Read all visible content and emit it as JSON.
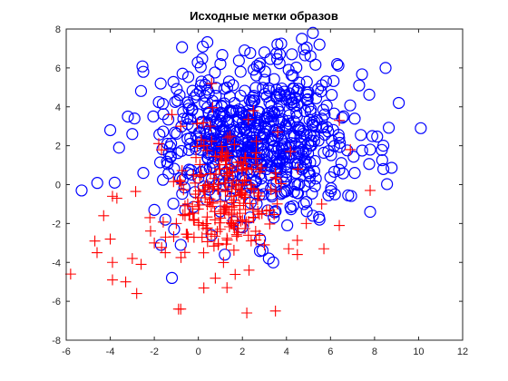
{
  "colors": {
    "class_circle": "#0000ff",
    "class_plus": "#ff0000",
    "axis": "#262626",
    "background": "#ffffff"
  },
  "chart_data": {
    "type": "scatter",
    "title": "Исходные метки образов",
    "xlabel": "",
    "ylabel": "",
    "xlim": [
      -6,
      12
    ],
    "ylim": [
      -8,
      8
    ],
    "xticks": [
      -6,
      -4,
      -2,
      0,
      2,
      4,
      6,
      8,
      10,
      12
    ],
    "yticks": [
      -8,
      -6,
      -4,
      -2,
      0,
      2,
      4,
      6,
      8
    ],
    "x_tick_labels": [
      "-6",
      "-4",
      "-2",
      "0",
      "2",
      "4",
      "6",
      "8",
      "10",
      "12"
    ],
    "y_tick_labels": [
      "-8",
      "-6",
      "-4",
      "-2",
      "0",
      "2",
      "4",
      "6",
      "8"
    ],
    "grid": false,
    "box": true,
    "series": [
      {
        "marker": "circle",
        "color": "#0000ff",
        "generated": {
          "count": 650,
          "center": [
            2.6,
            2.6
          ],
          "spread": [
            2.0,
            1.9
          ],
          "seed": 7
        },
        "points": [
          [
            5.2,
            7.8
          ],
          [
            4.7,
            7.5
          ],
          [
            5.5,
            7.2
          ],
          [
            0.2,
            7.1
          ],
          [
            2.1,
            6.9
          ],
          [
            3.0,
            6.8
          ],
          [
            3.7,
            6.7
          ],
          [
            6.3,
            6.2
          ],
          [
            8.5,
            6.0
          ],
          [
            1.0,
            6.2
          ],
          [
            -2.5,
            5.8
          ],
          [
            4.1,
            5.9
          ],
          [
            5.8,
            5.3
          ],
          [
            7.3,
            5.1
          ],
          [
            9.1,
            4.2
          ],
          [
            10.1,
            2.9
          ],
          [
            8.4,
            2.0
          ],
          [
            7.8,
            1.8
          ],
          [
            8.4,
            0.8
          ],
          [
            7.1,
            0.6
          ],
          [
            -5.3,
            -0.3
          ],
          [
            -4.0,
            2.8
          ],
          [
            -3.6,
            1.9
          ],
          [
            -3.2,
            3.5
          ],
          [
            -3.0,
            2.6
          ],
          [
            -2.9,
            3.4
          ],
          [
            -3.8,
            0.1
          ],
          [
            -2.5,
            0.6
          ],
          [
            -2.0,
            -1.3
          ],
          [
            -1.5,
            -1.8
          ],
          [
            -1.1,
            -2.3
          ],
          [
            -1.7,
            -3.1
          ],
          [
            -0.6,
            -1.3
          ],
          [
            -1.2,
            -4.8
          ],
          [
            3.2,
            -3.8
          ],
          [
            3.4,
            -4.0
          ],
          [
            2.8,
            -2.8
          ],
          [
            1.6,
            -1.9
          ],
          [
            4.8,
            -1.0
          ],
          [
            5.2,
            -1.6
          ],
          [
            5.5,
            -1.8
          ],
          [
            6.2,
            -0.5
          ],
          [
            7.8,
            -1.4
          ],
          [
            -0.8,
            -3.1
          ],
          [
            1.2,
            -3.6
          ],
          [
            2.0,
            -2.2
          ],
          [
            0.6,
            -2.6
          ],
          [
            4.3,
            -1.1
          ],
          [
            5.0,
            0.6
          ],
          [
            4.3,
            5.6
          ]
        ]
      },
      {
        "marker": "plus",
        "color": "#ff0000",
        "generated": {
          "count": 230,
          "center": [
            0.9,
            -0.6
          ],
          "spread": [
            1.4,
            1.7
          ],
          "seed": 13
        },
        "points": [
          [
            -5.8,
            -4.6
          ],
          [
            -4.7,
            -2.9
          ],
          [
            -4.6,
            -3.5
          ],
          [
            -4.3,
            -1.6
          ],
          [
            -4.0,
            -2.8
          ],
          [
            -3.9,
            -0.6
          ],
          [
            -3.7,
            -0.7
          ],
          [
            -3.9,
            -4.0
          ],
          [
            -3.9,
            -4.9
          ],
          [
            -3.3,
            -5.0
          ],
          [
            -2.8,
            -5.6
          ],
          [
            -3.0,
            -3.8
          ],
          [
            -2.6,
            -4.1
          ],
          [
            -2.0,
            -3.0
          ],
          [
            -1.5,
            -3.5
          ],
          [
            -0.9,
            -6.4
          ],
          [
            -0.8,
            -6.4
          ],
          [
            1.3,
            -5.3
          ],
          [
            2.3,
            -4.4
          ],
          [
            2.2,
            -6.6
          ],
          [
            3.5,
            -6.5
          ],
          [
            4.1,
            -3.3
          ],
          [
            5.7,
            -3.3
          ],
          [
            6.4,
            -2.1
          ],
          [
            7.8,
            -0.3
          ],
          [
            6.9,
            1.8
          ],
          [
            6.4,
            3.3
          ],
          [
            -1.2,
            3.6
          ],
          [
            -0.8,
            3.0
          ],
          [
            0.6,
            5.2
          ],
          [
            2.5,
            3.8
          ],
          [
            3.6,
            2.7
          ],
          [
            -2.2,
            -1.7
          ],
          [
            -1.0,
            -2.0
          ],
          [
            0.9,
            -3.1
          ],
          [
            1.6,
            -2.1
          ],
          [
            2.6,
            -2.4
          ],
          [
            3.0,
            -3.1
          ],
          [
            4.9,
            -2.0
          ],
          [
            5.6,
            -1.0
          ]
        ]
      }
    ]
  }
}
